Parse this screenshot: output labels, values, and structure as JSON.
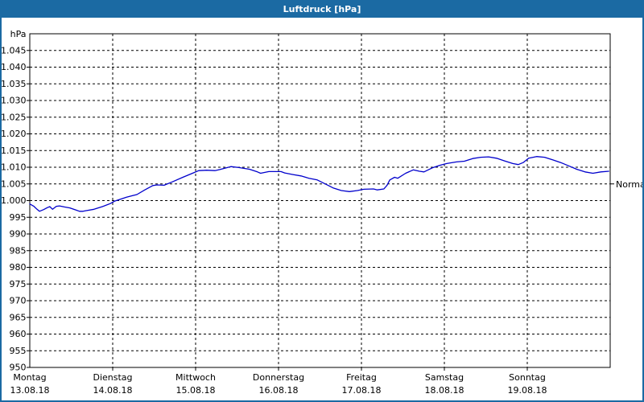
{
  "window": {
    "title": "Luftdruck [hPa]"
  },
  "colors": {
    "titlebar_bg": "#1b6aa3",
    "window_border": "#1b6aa3",
    "plot_bg": "#ffffff",
    "grid": "#000000",
    "axis": "#000000",
    "text": "#000000",
    "curve": "#0000cc"
  },
  "chart_data": {
    "type": "line",
    "title": "Luftdruck [hPa]",
    "y_axis": {
      "unit_label": "hPa",
      "min": 950,
      "max": 1050,
      "grid_step": 5,
      "grid_style": "dashed",
      "ticks": [
        {
          "value": 1045,
          "label": "1.045"
        },
        {
          "value": 1040,
          "label": "1.040"
        },
        {
          "value": 1035,
          "label": "1.035"
        },
        {
          "value": 1030,
          "label": "1.030"
        },
        {
          "value": 1025,
          "label": "1.025"
        },
        {
          "value": 1020,
          "label": "1.020"
        },
        {
          "value": 1015,
          "label": "1.015"
        },
        {
          "value": 1010,
          "label": "1.010"
        },
        {
          "value": 1005,
          "label": "1.005"
        },
        {
          "value": 1000,
          "label": "1.000"
        },
        {
          "value": 995,
          "label": "995"
        },
        {
          "value": 990,
          "label": "990"
        },
        {
          "value": 985,
          "label": "985"
        },
        {
          "value": 980,
          "label": "980"
        },
        {
          "value": 975,
          "label": "975"
        },
        {
          "value": 970,
          "label": "970"
        },
        {
          "value": 965,
          "label": "965"
        },
        {
          "value": 960,
          "label": "960"
        },
        {
          "value": 955,
          "label": "955"
        },
        {
          "value": 950,
          "label": "950"
        }
      ]
    },
    "x_axis": {
      "span_hours": 168,
      "days": [
        {
          "name": "Montag",
          "date": "13.08.18"
        },
        {
          "name": "Dienstag",
          "date": "14.08.18"
        },
        {
          "name": "Mittwoch",
          "date": "15.08.18"
        },
        {
          "name": "Donnerstag",
          "date": "16.08.18"
        },
        {
          "name": "Freitag",
          "date": "17.08.18"
        },
        {
          "name": "Samstag",
          "date": "18.08.18"
        },
        {
          "name": "Sonntag",
          "date": "19.08.18"
        }
      ]
    },
    "normal_marker": {
      "label": "Normal",
      "value": 1005
    },
    "legend": null,
    "series": [
      {
        "name": "Luftdruck",
        "color": "#0000cc",
        "points": [
          [
            0,
            999.0
          ],
          [
            1.2,
            998.3
          ],
          [
            2.1,
            997.4
          ],
          [
            2.8,
            996.8
          ],
          [
            4,
            997.3
          ],
          [
            5.1,
            997.9
          ],
          [
            5.8,
            998.2
          ],
          [
            6.6,
            997.4
          ],
          [
            7.7,
            998.3
          ],
          [
            8.6,
            998.4
          ],
          [
            10,
            998.1
          ],
          [
            11.6,
            997.8
          ],
          [
            13.3,
            997.2
          ],
          [
            14.4,
            996.8
          ],
          [
            15.4,
            996.8
          ],
          [
            16.3,
            997.0
          ],
          [
            18.6,
            997.4
          ],
          [
            21,
            998.2
          ],
          [
            23.3,
            999.1
          ],
          [
            24.5,
            999.8
          ],
          [
            26.8,
            1000.6
          ],
          [
            28,
            1001.0
          ],
          [
            29.8,
            1001.5
          ],
          [
            31,
            1001.8
          ],
          [
            33.3,
            1003.2
          ],
          [
            35.6,
            1004.5
          ],
          [
            36.8,
            1004.7
          ],
          [
            38.9,
            1004.6
          ],
          [
            41.2,
            1005.6
          ],
          [
            44.3,
            1007.0
          ],
          [
            47.3,
            1008.3
          ],
          [
            48.9,
            1009.0
          ],
          [
            51.2,
            1009.1
          ],
          [
            53.6,
            1009.0
          ],
          [
            55,
            1009.3
          ],
          [
            58.2,
            1010.2
          ],
          [
            60.5,
            1009.9
          ],
          [
            63.6,
            1009.4
          ],
          [
            65.9,
            1008.6
          ],
          [
            66.8,
            1008.2
          ],
          [
            69.2,
            1008.7
          ],
          [
            72.7,
            1008.7
          ],
          [
            73.8,
            1008.3
          ],
          [
            76.2,
            1007.8
          ],
          [
            78.5,
            1007.4
          ],
          [
            80.8,
            1006.7
          ],
          [
            83.2,
            1006.2
          ],
          [
            85.5,
            1005.0
          ],
          [
            87.8,
            1003.8
          ],
          [
            90.2,
            1003.0
          ],
          [
            92.5,
            1002.7
          ],
          [
            94.8,
            1003.0
          ],
          [
            96.7,
            1003.4
          ],
          [
            99.5,
            1003.5
          ],
          [
            100.6,
            1003.2
          ],
          [
            102.5,
            1003.5
          ],
          [
            103.4,
            1004.6
          ],
          [
            104.2,
            1006.2
          ],
          [
            105.6,
            1007.0
          ],
          [
            106.5,
            1006.7
          ],
          [
            108.8,
            1008.2
          ],
          [
            111,
            1009.2
          ],
          [
            112.8,
            1008.8
          ],
          [
            114.1,
            1008.6
          ],
          [
            116.5,
            1009.8
          ],
          [
            118.8,
            1010.6
          ],
          [
            120.7,
            1011.1
          ],
          [
            123.5,
            1011.6
          ],
          [
            125.8,
            1011.8
          ],
          [
            128.2,
            1012.6
          ],
          [
            130.5,
            1013.0
          ],
          [
            132.8,
            1013.1
          ],
          [
            135.1,
            1012.7
          ],
          [
            137.4,
            1011.9
          ],
          [
            139.8,
            1011.1
          ],
          [
            141.4,
            1010.8
          ],
          [
            142.8,
            1011.4
          ],
          [
            144.4,
            1012.7
          ],
          [
            146.7,
            1013.2
          ],
          [
            149,
            1013.0
          ],
          [
            151.4,
            1012.2
          ],
          [
            153.7,
            1011.4
          ],
          [
            156,
            1010.4
          ],
          [
            158.3,
            1009.4
          ],
          [
            160.7,
            1008.6
          ],
          [
            163,
            1008.2
          ],
          [
            165.3,
            1008.6
          ],
          [
            167.6,
            1008.8
          ]
        ]
      }
    ]
  }
}
